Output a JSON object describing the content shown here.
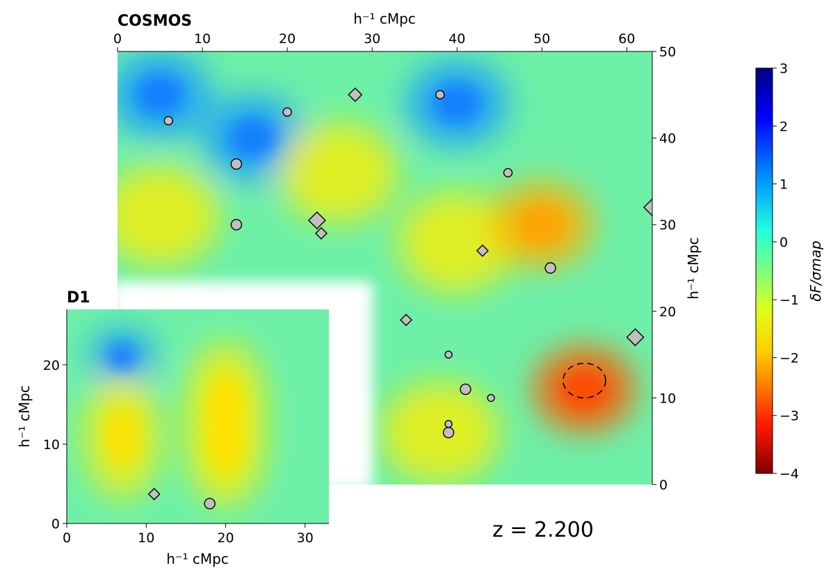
{
  "redshift_label": "z = 2.200",
  "colorbar": {
    "label": "δF/σmap",
    "ticks": [
      "3",
      "2",
      "1",
      "0",
      "−1",
      "−2",
      "−3",
      "−4"
    ],
    "range": [
      -4,
      3
    ],
    "colormap": "jet-reversed"
  },
  "chart_data": [
    {
      "type": "heatmap",
      "title": "COSMOS",
      "xlabel": "h⁻¹ cMpc",
      "ylabel": "h⁻¹ cMpc",
      "xlim": [
        0,
        63
      ],
      "ylim": [
        0,
        50
      ],
      "xticks": [
        "0",
        "10",
        "20",
        "30",
        "40",
        "50",
        "60"
      ],
      "yticks": [
        "0",
        "10",
        "20",
        "30",
        "40",
        "50"
      ],
      "mask_region": {
        "x": [
          0,
          30
        ],
        "y": [
          0,
          24
        ]
      },
      "features": [
        {
          "kind": "blue",
          "x": 5,
          "y": 45
        },
        {
          "kind": "blue",
          "x": 16,
          "y": 40
        },
        {
          "kind": "blue",
          "x": 40,
          "y": 44
        },
        {
          "kind": "yellow",
          "x": 5,
          "y": 31
        },
        {
          "kind": "yellow",
          "x": 26,
          "y": 36
        },
        {
          "kind": "yellow",
          "x": 40,
          "y": 28
        },
        {
          "kind": "orange",
          "x": 50,
          "y": 30
        },
        {
          "kind": "red",
          "x": 55,
          "y": 11
        },
        {
          "kind": "yellow",
          "x": 38,
          "y": 6
        }
      ],
      "dashed_contour": {
        "x": 55,
        "y": 12,
        "rx": 2.5,
        "ry": 2
      },
      "circles": [
        {
          "x": 6,
          "y": 42,
          "size": "small"
        },
        {
          "x": 20,
          "y": 43,
          "size": "small"
        },
        {
          "x": 14,
          "y": 37,
          "size": "medium"
        },
        {
          "x": 14,
          "y": 30,
          "size": "medium"
        },
        {
          "x": 38,
          "y": 45,
          "size": "small"
        },
        {
          "x": 46,
          "y": 36,
          "size": "small"
        },
        {
          "x": 51,
          "y": 25,
          "size": "medium"
        },
        {
          "x": 39,
          "y": 15,
          "size": "tiny"
        },
        {
          "x": 41,
          "y": 11,
          "size": "medium"
        },
        {
          "x": 44,
          "y": 10,
          "size": "tiny"
        },
        {
          "x": 39,
          "y": 7,
          "size": "tiny"
        },
        {
          "x": 39,
          "y": 6,
          "size": "medium"
        }
      ],
      "diamonds": [
        {
          "x": 28,
          "y": 45,
          "size": "medium"
        },
        {
          "x": 23.5,
          "y": 30.5,
          "size": "large"
        },
        {
          "x": 24,
          "y": 29,
          "size": "small"
        },
        {
          "x": 43,
          "y": 27,
          "size": "small"
        },
        {
          "x": 63,
          "y": 32,
          "size": "large"
        },
        {
          "x": 34,
          "y": 19,
          "size": "small"
        },
        {
          "x": 61,
          "y": 17,
          "size": "large"
        }
      ]
    },
    {
      "type": "heatmap",
      "title": "D1",
      "xlabel": "h⁻¹ cMpc",
      "ylabel": "h⁻¹ cMpc",
      "xlim": [
        0,
        33
      ],
      "ylim": [
        0,
        27
      ],
      "xticks": [
        "0",
        "10",
        "20",
        "30"
      ],
      "yticks": [
        "0",
        "10",
        "20"
      ],
      "features": [
        {
          "kind": "blue",
          "x": 7,
          "y": 21
        },
        {
          "kind": "yellow",
          "x": 20,
          "y": 15
        },
        {
          "kind": "yellow",
          "x": 20,
          "y": 10
        },
        {
          "kind": "yellow",
          "x": 7,
          "y": 11
        }
      ],
      "circles": [
        {
          "x": 18,
          "y": 2.5,
          "size": "medium"
        }
      ],
      "diamonds": [
        {
          "x": 11,
          "y": 3.7,
          "size": "small"
        }
      ]
    }
  ]
}
